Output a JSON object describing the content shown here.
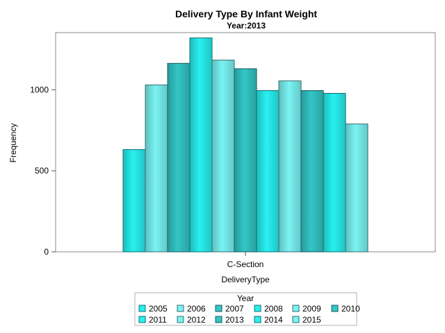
{
  "chart_data": {
    "type": "bar",
    "title": "Delivery Type By Infant Weight",
    "subtitle": "Year:2013",
    "xlabel": "DeliveryType",
    "ylabel": "Frequency",
    "categories": [
      "C-Section"
    ],
    "ylim": [
      0,
      1350
    ],
    "yticks": [
      "0",
      "500",
      "1000"
    ],
    "grid": false,
    "legend_title": "Year",
    "legend_position": "bottom",
    "series": [
      {
        "name": "2005",
        "values": [
          631
        ],
        "color": "#28f0f0"
      },
      {
        "name": "2006",
        "values": [
          1030
        ],
        "color": "#7af3f3"
      },
      {
        "name": "2007",
        "values": [
          1163
        ],
        "color": "#33c6c6"
      },
      {
        "name": "2008",
        "values": [
          1320
        ],
        "color": "#28f0f0"
      },
      {
        "name": "2009",
        "values": [
          1183
        ],
        "color": "#7af3f3"
      },
      {
        "name": "2010",
        "values": [
          1130
        ],
        "color": "#33c6c6"
      },
      {
        "name": "2011",
        "values": [
          995
        ],
        "color": "#28f0f0"
      },
      {
        "name": "2012",
        "values": [
          1055
        ],
        "color": "#7af3f3"
      },
      {
        "name": "2013",
        "values": [
          995
        ],
        "color": "#33c6c6"
      },
      {
        "name": "2014",
        "values": [
          978
        ],
        "color": "#28f0f0"
      },
      {
        "name": "2015",
        "values": [
          789
        ],
        "color": "#7af3f3"
      }
    ]
  }
}
